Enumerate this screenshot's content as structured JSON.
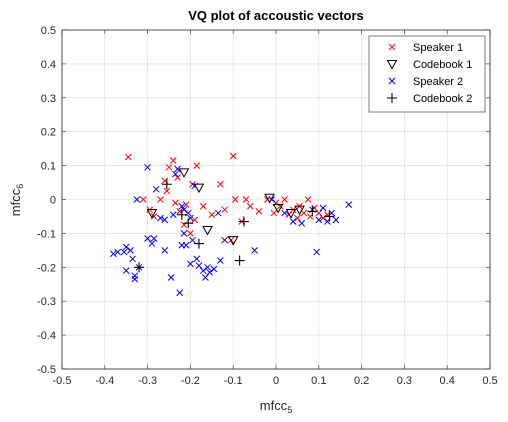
{
  "chart_data": {
    "type": "scatter",
    "title": "VQ plot of accoustic vectors",
    "xlabel": "mfcc",
    "xlabel_sub": "5",
    "ylabel": "mfcc",
    "ylabel_sub": "6",
    "xlim": [
      -0.5,
      0.5
    ],
    "ylim": [
      -0.5,
      0.5
    ],
    "xticks": [
      -0.5,
      -0.4,
      -0.3,
      -0.2,
      -0.1,
      0,
      0.1,
      0.2,
      0.3,
      0.4,
      0.5
    ],
    "yticks": [
      -0.5,
      -0.4,
      -0.3,
      -0.2,
      -0.1,
      0,
      0.1,
      0.2,
      0.3,
      0.4,
      0.5
    ],
    "xtick_labels": [
      "-0.5",
      "-0.4",
      "-0.3",
      "-0.2",
      "-0.1",
      "0",
      "0.1",
      "0.2",
      "0.3",
      "0.4",
      "0.5"
    ],
    "ytick_labels": [
      "-0.5",
      "-0.4",
      "-0.3",
      "-0.2",
      "-0.1",
      "0",
      "0.1",
      "0.2",
      "0.3",
      "0.4",
      "0.5"
    ],
    "grid": true,
    "legend_position": "top-right",
    "series": [
      {
        "name": "Speaker 1",
        "marker": "x",
        "color": "#ff0000",
        "points": [
          [
            -0.345,
            0.125
          ],
          [
            -0.31,
            0.0
          ],
          [
            -0.295,
            -0.03
          ],
          [
            -0.285,
            -0.05
          ],
          [
            -0.27,
            0.0
          ],
          [
            -0.26,
            0.055
          ],
          [
            -0.255,
            0.025
          ],
          [
            -0.25,
            0.095
          ],
          [
            -0.24,
            0.115
          ],
          [
            -0.235,
            -0.01
          ],
          [
            -0.23,
            0.065
          ],
          [
            -0.225,
            -0.035
          ],
          [
            -0.215,
            -0.075
          ],
          [
            -0.21,
            -0.015
          ],
          [
            -0.2,
            -0.1
          ],
          [
            -0.195,
            0.045
          ],
          [
            -0.19,
            -0.06
          ],
          [
            -0.185,
            0.1
          ],
          [
            -0.17,
            -0.02
          ],
          [
            -0.15,
            -0.045
          ],
          [
            -0.13,
            0.045
          ],
          [
            -0.12,
            -0.03
          ],
          [
            -0.105,
            -0.12
          ],
          [
            -0.1,
            0.128
          ],
          [
            -0.095,
            0.0
          ],
          [
            -0.08,
            -0.065
          ],
          [
            -0.07,
            0.0
          ],
          [
            -0.06,
            -0.02
          ],
          [
            -0.04,
            -0.035
          ],
          [
            -0.02,
            0.0
          ],
          [
            0.0,
            -0.01
          ],
          [
            0.01,
            -0.02
          ],
          [
            0.02,
            0.0
          ],
          [
            0.03,
            -0.045
          ],
          [
            0.04,
            -0.03
          ],
          [
            0.05,
            -0.055
          ],
          [
            0.055,
            -0.02
          ],
          [
            0.065,
            -0.04
          ],
          [
            0.075,
            0.0
          ],
          [
            0.08,
            -0.05
          ],
          [
            0.09,
            -0.025
          ],
          [
            0.1,
            -0.04
          ],
          [
            0.11,
            -0.055
          ],
          [
            0.12,
            -0.045
          ],
          [
            -0.005,
            -0.04
          ]
        ]
      },
      {
        "name": "Codebook 1",
        "marker": "triangle-down",
        "color": "#000000",
        "points": [
          [
            -0.29,
            -0.04
          ],
          [
            -0.215,
            0.08
          ],
          [
            -0.18,
            0.035
          ],
          [
            -0.16,
            -0.09
          ],
          [
            -0.1,
            -0.12
          ],
          [
            -0.015,
            0.005
          ],
          [
            0.005,
            -0.025
          ],
          [
            0.035,
            -0.04
          ],
          [
            0.055,
            -0.03
          ]
        ]
      },
      {
        "name": "Speaker 2",
        "marker": "x",
        "color": "#0000ff",
        "points": [
          [
            -0.38,
            -0.16
          ],
          [
            -0.37,
            -0.155
          ],
          [
            -0.355,
            -0.155
          ],
          [
            -0.35,
            -0.14
          ],
          [
            -0.35,
            -0.21
          ],
          [
            -0.34,
            -0.15
          ],
          [
            -0.335,
            -0.175
          ],
          [
            -0.33,
            -0.225
          ],
          [
            -0.33,
            -0.235
          ],
          [
            -0.325,
            0.0
          ],
          [
            -0.32,
            -0.2
          ],
          [
            -0.3,
            0.095
          ],
          [
            -0.29,
            -0.13
          ],
          [
            -0.285,
            -0.115
          ],
          [
            -0.28,
            0.03
          ],
          [
            -0.27,
            -0.055
          ],
          [
            -0.26,
            -0.06
          ],
          [
            -0.245,
            -0.23
          ],
          [
            -0.24,
            -0.045
          ],
          [
            -0.235,
            0.075
          ],
          [
            -0.23,
            0.09
          ],
          [
            -0.225,
            -0.275
          ],
          [
            -0.22,
            -0.02
          ],
          [
            -0.22,
            -0.135
          ],
          [
            -0.215,
            -0.03
          ],
          [
            -0.215,
            -0.1
          ],
          [
            -0.21,
            -0.135
          ],
          [
            -0.205,
            -0.04
          ],
          [
            -0.2,
            -0.055
          ],
          [
            -0.2,
            -0.19
          ],
          [
            -0.195,
            -0.12
          ],
          [
            -0.19,
            0.04
          ],
          [
            -0.185,
            -0.175
          ],
          [
            -0.18,
            -0.195
          ],
          [
            -0.17,
            -0.21
          ],
          [
            -0.165,
            -0.23
          ],
          [
            -0.16,
            -0.2
          ],
          [
            -0.155,
            -0.215
          ],
          [
            -0.145,
            -0.205
          ],
          [
            -0.135,
            -0.04
          ],
          [
            -0.13,
            -0.18
          ],
          [
            -0.12,
            -0.12
          ],
          [
            -0.05,
            -0.15
          ],
          [
            -0.01,
            0.0
          ],
          [
            0.02,
            -0.04
          ],
          [
            0.04,
            -0.065
          ],
          [
            0.06,
            -0.07
          ],
          [
            0.085,
            -0.03
          ],
          [
            0.095,
            -0.155
          ],
          [
            0.1,
            -0.06
          ],
          [
            0.11,
            -0.025
          ],
          [
            0.12,
            -0.065
          ],
          [
            0.13,
            -0.04
          ],
          [
            0.14,
            -0.06
          ],
          [
            0.17,
            -0.015
          ],
          [
            -0.3,
            -0.115
          ],
          [
            -0.26,
            -0.15
          ]
        ]
      },
      {
        "name": "Codebook 2",
        "marker": "plus",
        "color": "#000000",
        "points": [
          [
            -0.32,
            -0.2
          ],
          [
            -0.255,
            0.045
          ],
          [
            -0.22,
            -0.045
          ],
          [
            -0.205,
            -0.07
          ],
          [
            -0.18,
            -0.13
          ],
          [
            -0.085,
            -0.18
          ],
          [
            -0.075,
            -0.065
          ],
          [
            0.085,
            -0.035
          ],
          [
            0.125,
            -0.05
          ]
        ]
      }
    ]
  }
}
